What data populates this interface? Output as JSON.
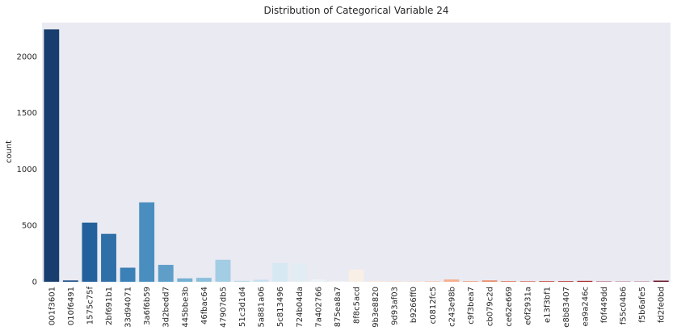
{
  "chart_data": {
    "type": "bar",
    "title": "Distribution of Categorical Variable 24",
    "xlabel": "",
    "ylabel": "count",
    "ylim": [
      0,
      2300
    ],
    "yticks": [
      0,
      500,
      1000,
      1500,
      2000
    ],
    "grid": false,
    "categories": [
      "001f3601",
      "010f6491",
      "1575c75f",
      "2bf691b1",
      "33d94071",
      "3a6f6b59",
      "3d2bedd7",
      "445bbe3b",
      "46fbac64",
      "47907db5",
      "51c3d1d4",
      "5a881a06",
      "5c813496",
      "724b04da",
      "7a402766",
      "875ea8a7",
      "8f8c5acd",
      "9b3e8820",
      "9d93af03",
      "b9266ff0",
      "c0812fc5",
      "c243e98b",
      "c9f3bea7",
      "cb079c2d",
      "ce62e669",
      "e0f2931a",
      "e13f3bf1",
      "e8b83407",
      "ea9a246c",
      "f0f449dd",
      "f55c04b6",
      "f5b6afe5",
      "fd2fe0bd"
    ],
    "values": [
      2240,
      12,
      525,
      425,
      125,
      705,
      150,
      30,
      35,
      195,
      8,
      18,
      165,
      165,
      22,
      5,
      108,
      6,
      5,
      3,
      5,
      20,
      6,
      12,
      6,
      5,
      6,
      6,
      8,
      3,
      2,
      2,
      10
    ],
    "colors": [
      "#173e6e",
      "#1c4e85",
      "#24609b",
      "#2e6fa8",
      "#3b80b6",
      "#4a8ec0",
      "#5e9ec8",
      "#74afd2",
      "#8cbfdb",
      "#a2cde4",
      "#b7d8ea",
      "#c7e0ee",
      "#d6e8f1",
      "#e2edf3",
      "#ecf2f5",
      "#f5f5f5",
      "#f8efe7",
      "#fbe6d8",
      "#fcdcc8",
      "#fcd0b5",
      "#f9c1a1",
      "#f5b08c",
      "#f09c76",
      "#e88662",
      "#de7050",
      "#d25a41",
      "#c54434",
      "#b6302a",
      "#a52023",
      "#951520",
      "#820d1d",
      "#700a1a",
      "#5f0616"
    ]
  }
}
